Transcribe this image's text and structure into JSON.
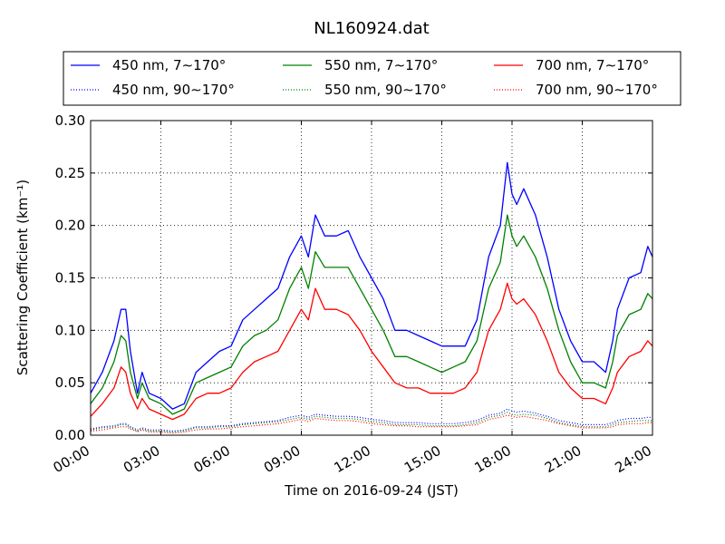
{
  "chart_data": {
    "type": "line",
    "title": "NL160924.dat",
    "xlabel": "Time on 2016-09-24 (JST)",
    "ylabel": "Scattering Coefficient (km⁻¹)",
    "xlim": [
      0,
      24
    ],
    "ylim": [
      0.0,
      0.3
    ],
    "x_ticks": [
      0,
      3,
      6,
      9,
      12,
      15,
      18,
      21,
      24
    ],
    "x_tick_labels": [
      "00:00",
      "03:00",
      "06:00",
      "09:00",
      "12:00",
      "15:00",
      "18:00",
      "21:00",
      "24:00"
    ],
    "y_ticks": [
      0.0,
      0.05,
      0.1,
      0.15,
      0.2,
      0.25,
      0.3
    ],
    "y_tick_labels": [
      "0.00",
      "0.05",
      "0.10",
      "0.15",
      "0.20",
      "0.25",
      "0.30"
    ],
    "grid": true,
    "legend_position": "top, above plot",
    "x": [
      0,
      0.5,
      1.0,
      1.3,
      1.5,
      1.7,
      2.0,
      2.2,
      2.5,
      3.0,
      3.5,
      4.0,
      4.5,
      5.0,
      5.5,
      6.0,
      6.5,
      7.0,
      7.5,
      8.0,
      8.5,
      9.0,
      9.3,
      9.6,
      10.0,
      10.5,
      11.0,
      11.5,
      12.0,
      12.5,
      13.0,
      13.5,
      14.0,
      14.5,
      15.0,
      15.5,
      16.0,
      16.5,
      17.0,
      17.5,
      17.8,
      18.0,
      18.2,
      18.5,
      19.0,
      19.5,
      20.0,
      20.5,
      21.0,
      21.5,
      22.0,
      22.3,
      22.5,
      23.0,
      23.5,
      23.8,
      24.0
    ],
    "series": [
      {
        "name": "450 nm, 7∼170°",
        "color": "#0000ff",
        "style": "solid",
        "values": [
          0.04,
          0.06,
          0.09,
          0.12,
          0.12,
          0.08,
          0.04,
          0.06,
          0.04,
          0.035,
          0.025,
          0.03,
          0.06,
          0.07,
          0.08,
          0.085,
          0.11,
          0.12,
          0.13,
          0.14,
          0.17,
          0.19,
          0.17,
          0.21,
          0.19,
          0.19,
          0.195,
          0.17,
          0.15,
          0.13,
          0.1,
          0.1,
          0.095,
          0.09,
          0.085,
          0.085,
          0.085,
          0.11,
          0.17,
          0.2,
          0.26,
          0.23,
          0.22,
          0.235,
          0.21,
          0.17,
          0.12,
          0.09,
          0.07,
          0.07,
          0.06,
          0.09,
          0.12,
          0.15,
          0.155,
          0.18,
          0.17
        ]
      },
      {
        "name": "550 nm, 7∼170°",
        "color": "#008000",
        "style": "solid",
        "values": [
          0.03,
          0.045,
          0.07,
          0.095,
          0.09,
          0.06,
          0.035,
          0.05,
          0.035,
          0.03,
          0.02,
          0.025,
          0.05,
          0.055,
          0.06,
          0.065,
          0.085,
          0.095,
          0.1,
          0.11,
          0.14,
          0.16,
          0.14,
          0.175,
          0.16,
          0.16,
          0.16,
          0.14,
          0.12,
          0.1,
          0.075,
          0.075,
          0.07,
          0.065,
          0.06,
          0.065,
          0.07,
          0.09,
          0.14,
          0.165,
          0.21,
          0.19,
          0.18,
          0.19,
          0.17,
          0.14,
          0.1,
          0.07,
          0.05,
          0.05,
          0.045,
          0.07,
          0.095,
          0.115,
          0.12,
          0.135,
          0.13
        ]
      },
      {
        "name": "700 nm, 7∼170°",
        "color": "#ff0000",
        "style": "solid",
        "values": [
          0.018,
          0.03,
          0.045,
          0.065,
          0.06,
          0.04,
          0.025,
          0.035,
          0.025,
          0.02,
          0.015,
          0.02,
          0.035,
          0.04,
          0.04,
          0.045,
          0.06,
          0.07,
          0.075,
          0.08,
          0.1,
          0.12,
          0.11,
          0.14,
          0.12,
          0.12,
          0.115,
          0.1,
          0.08,
          0.065,
          0.05,
          0.045,
          0.045,
          0.04,
          0.04,
          0.04,
          0.045,
          0.06,
          0.1,
          0.12,
          0.145,
          0.13,
          0.125,
          0.13,
          0.115,
          0.09,
          0.06,
          0.045,
          0.035,
          0.035,
          0.03,
          0.045,
          0.06,
          0.075,
          0.08,
          0.09,
          0.085
        ]
      },
      {
        "name": "450 nm, 90∼170°",
        "color": "#0000ff",
        "style": "dotted",
        "values": [
          0.006,
          0.008,
          0.009,
          0.011,
          0.011,
          0.008,
          0.005,
          0.007,
          0.005,
          0.005,
          0.004,
          0.005,
          0.008,
          0.008,
          0.009,
          0.009,
          0.011,
          0.012,
          0.013,
          0.014,
          0.017,
          0.019,
          0.017,
          0.02,
          0.019,
          0.018,
          0.018,
          0.017,
          0.015,
          0.014,
          0.012,
          0.012,
          0.012,
          0.011,
          0.011,
          0.011,
          0.012,
          0.014,
          0.019,
          0.021,
          0.025,
          0.023,
          0.022,
          0.023,
          0.021,
          0.018,
          0.014,
          0.012,
          0.01,
          0.01,
          0.01,
          0.012,
          0.014,
          0.016,
          0.016,
          0.017,
          0.017
        ]
      },
      {
        "name": "550 nm, 90∼170°",
        "color": "#008000",
        "style": "dotted",
        "values": [
          0.005,
          0.007,
          0.008,
          0.01,
          0.01,
          0.007,
          0.004,
          0.006,
          0.004,
          0.004,
          0.003,
          0.004,
          0.007,
          0.007,
          0.008,
          0.008,
          0.01,
          0.011,
          0.012,
          0.013,
          0.015,
          0.017,
          0.015,
          0.018,
          0.017,
          0.016,
          0.016,
          0.015,
          0.013,
          0.012,
          0.01,
          0.01,
          0.01,
          0.009,
          0.009,
          0.009,
          0.01,
          0.012,
          0.017,
          0.019,
          0.022,
          0.02,
          0.019,
          0.02,
          0.019,
          0.016,
          0.012,
          0.01,
          0.008,
          0.008,
          0.008,
          0.01,
          0.012,
          0.013,
          0.014,
          0.014,
          0.014
        ]
      },
      {
        "name": "700 nm, 90∼170°",
        "color": "#ff0000",
        "style": "dotted",
        "values": [
          0.004,
          0.005,
          0.007,
          0.008,
          0.008,
          0.006,
          0.003,
          0.005,
          0.003,
          0.003,
          0.002,
          0.003,
          0.005,
          0.006,
          0.006,
          0.007,
          0.008,
          0.009,
          0.01,
          0.011,
          0.013,
          0.015,
          0.013,
          0.016,
          0.015,
          0.014,
          0.014,
          0.013,
          0.011,
          0.01,
          0.009,
          0.009,
          0.008,
          0.008,
          0.008,
          0.008,
          0.009,
          0.01,
          0.015,
          0.017,
          0.019,
          0.018,
          0.017,
          0.018,
          0.016,
          0.014,
          0.011,
          0.009,
          0.007,
          0.007,
          0.007,
          0.008,
          0.01,
          0.011,
          0.011,
          0.012,
          0.012
        ]
      }
    ],
    "legend_order": [
      0,
      1,
      2,
      3,
      4,
      5
    ]
  }
}
